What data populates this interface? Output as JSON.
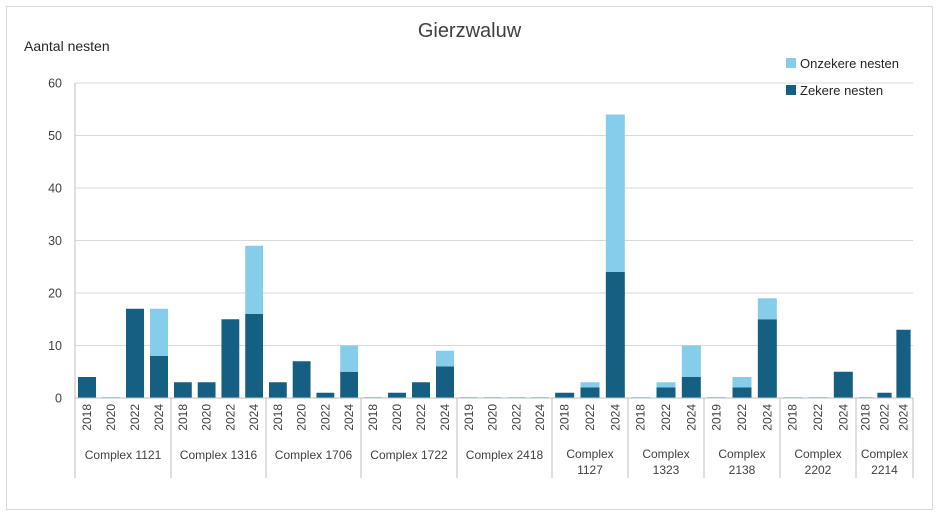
{
  "chart_data": {
    "type": "bar",
    "stacked": true,
    "title": "Gierzwaluw",
    "ylabel": "Aantal nesten",
    "xlabel": "",
    "ylim": [
      0,
      60
    ],
    "yticks": [
      0,
      10,
      20,
      30,
      40,
      50,
      60
    ],
    "grid": true,
    "legend_position": "top-right",
    "series_colors": {
      "zeker": "#156082",
      "onzeker": "#85cdea"
    },
    "legend": [
      {
        "key": "onzeker",
        "label": "Onzekere nesten"
      },
      {
        "key": "zeker",
        "label": "Zekere nesten"
      }
    ],
    "groups": [
      {
        "name": [
          "Complex 1121"
        ],
        "years": [
          "2018",
          "2020",
          "2022",
          "2024"
        ],
        "zeker": [
          4,
          0,
          17,
          8
        ],
        "onzeker": [
          0,
          0,
          0,
          9
        ]
      },
      {
        "name": [
          "Complex 1316"
        ],
        "years": [
          "2018",
          "2020",
          "2022",
          "2024"
        ],
        "zeker": [
          3,
          3,
          15,
          16
        ],
        "onzeker": [
          0,
          0,
          0,
          13
        ]
      },
      {
        "name": [
          "Complex 1706"
        ],
        "years": [
          "2018",
          "2020",
          "2022",
          "2024"
        ],
        "zeker": [
          3,
          7,
          1,
          5
        ],
        "onzeker": [
          0,
          0,
          0,
          5
        ]
      },
      {
        "name": [
          "Complex 1722"
        ],
        "years": [
          "2018",
          "2020",
          "2022",
          "2024"
        ],
        "zeker": [
          0,
          1,
          3,
          6
        ],
        "onzeker": [
          0,
          0,
          0,
          3
        ]
      },
      {
        "name": [
          "Complex 2418"
        ],
        "years": [
          "2019",
          "2020",
          "2022",
          "2024"
        ],
        "zeker": [
          0,
          0,
          0,
          0
        ],
        "onzeker": [
          0,
          0,
          0,
          0
        ]
      },
      {
        "name": [
          "Complex",
          "1127"
        ],
        "years": [
          "2018",
          "2022",
          "2024"
        ],
        "zeker": [
          1,
          2,
          24
        ],
        "onzeker": [
          0,
          1,
          30
        ]
      },
      {
        "name": [
          "Complex",
          "1323"
        ],
        "years": [
          "2018",
          "2022",
          "2024"
        ],
        "zeker": [
          0,
          2,
          4
        ],
        "onzeker": [
          0,
          1,
          6
        ]
      },
      {
        "name": [
          "Complex",
          "2138"
        ],
        "years": [
          "2019",
          "2022",
          "2024"
        ],
        "zeker": [
          0,
          2,
          15
        ],
        "onzeker": [
          0,
          2,
          4
        ]
      },
      {
        "name": [
          "Complex",
          "2202"
        ],
        "years": [
          "2018",
          "2022",
          "2024"
        ],
        "zeker": [
          0,
          0,
          5
        ],
        "onzeker": [
          0,
          0,
          0
        ]
      },
      {
        "name": [
          "Complex",
          "2214"
        ],
        "years": [
          "2018",
          "2022",
          "2024"
        ],
        "zeker": [
          0,
          1,
          13
        ],
        "onzeker": [
          0,
          0,
          0
        ]
      }
    ]
  }
}
